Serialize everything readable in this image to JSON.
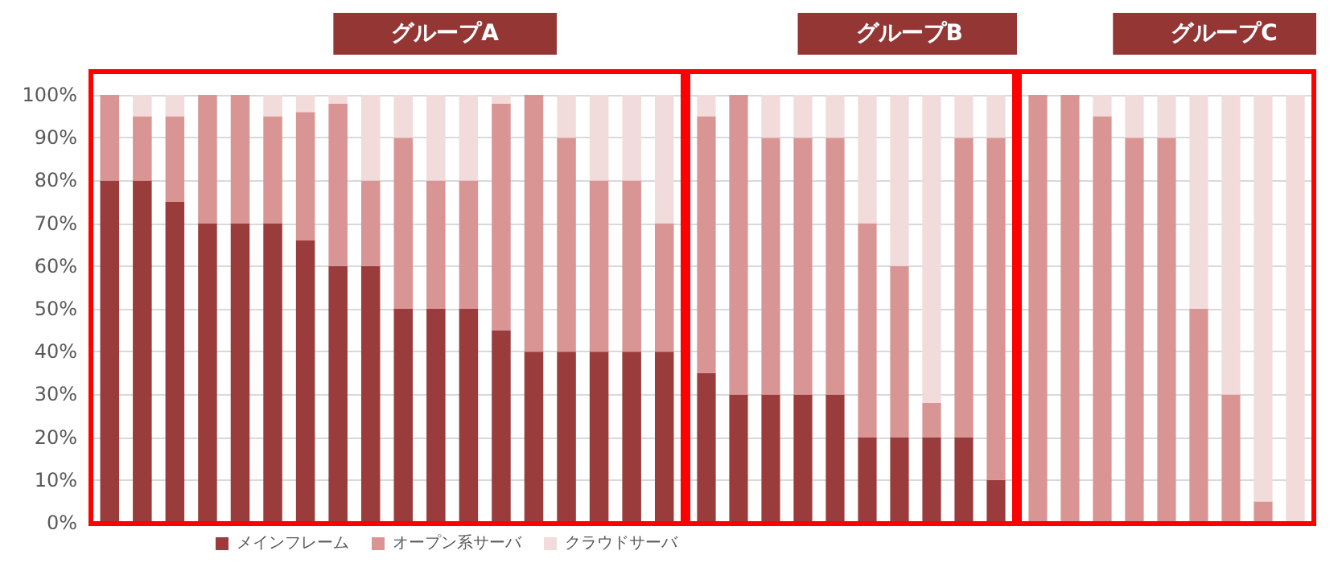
{
  "chart_data": [
    {
      "type": "bar",
      "stacked": true,
      "title": "グループA",
      "categories": [
        null,
        null,
        null,
        null,
        null,
        null,
        null,
        null,
        null,
        null,
        null,
        null,
        null,
        null,
        null,
        null,
        null,
        null
      ],
      "series": [
        {
          "name": "メインフレーム",
          "color": "#9b3c3c",
          "values": [
            80,
            80,
            75,
            70,
            70,
            70,
            66,
            60,
            60,
            50,
            50,
            50,
            45,
            40,
            40,
            40,
            40,
            40
          ]
        },
        {
          "name": "オープン系サーバ",
          "color": "#d99594",
          "values": [
            20,
            15,
            20,
            30,
            30,
            25,
            30,
            38,
            20,
            40,
            30,
            30,
            53,
            60,
            50,
            40,
            40,
            30
          ]
        },
        {
          "name": "クラウドサーバ",
          "color": "#f2dbdb",
          "values": [
            0,
            5,
            5,
            0,
            0,
            5,
            4,
            2,
            20,
            10,
            20,
            20,
            2,
            0,
            10,
            20,
            20,
            30
          ]
        }
      ],
      "ylim": [
        0,
        100
      ],
      "yticks": [
        {
          "value": 0,
          "label": "0%"
        },
        {
          "value": 10,
          "label": "10%"
        },
        {
          "value": 20,
          "label": "20%"
        },
        {
          "value": 30,
          "label": "30%"
        },
        {
          "value": 40,
          "label": "40%"
        },
        {
          "value": 50,
          "label": "50%"
        },
        {
          "value": 60,
          "label": "60%"
        },
        {
          "value": 70,
          "label": "70%"
        },
        {
          "value": 80,
          "label": "80%"
        },
        {
          "value": 90,
          "label": "90%"
        },
        {
          "value": 100,
          "label": "100%"
        }
      ],
      "grid": "y",
      "legend": "bottom",
      "tick_labels": "y"
    },
    {
      "type": "bar",
      "stacked": true,
      "title": "グループB",
      "categories": [
        null,
        null,
        null,
        null,
        null,
        null,
        null,
        null,
        null,
        null
      ],
      "series": [
        {
          "color": "#9b3c3c",
          "values": [
            35,
            30,
            30,
            30,
            30,
            20,
            20,
            20,
            20,
            10
          ]
        },
        {
          "color": "#d99594",
          "values": [
            60,
            70,
            60,
            60,
            60,
            50,
            40,
            8,
            70,
            80
          ]
        },
        {
          "color": "#f2dbdb",
          "values": [
            5,
            0,
            10,
            10,
            10,
            30,
            40,
            72,
            10,
            10
          ]
        }
      ],
      "ylim": [
        0,
        100
      ],
      "yticks": [
        0,
        10,
        20,
        30,
        40,
        50,
        60,
        70,
        80,
        90,
        100
      ],
      "grid": "y",
      "tick_labels": false
    },
    {
      "type": "bar",
      "stacked": true,
      "title": "グループC",
      "categories": [
        null,
        null,
        null,
        null,
        null,
        null,
        null,
        null,
        null
      ],
      "series": [
        {
          "color": "#d99594",
          "values": [
            100,
            100,
            95,
            90,
            90,
            50,
            30,
            5,
            null
          ]
        },
        {
          "color": "#f2dbdb",
          "values": [
            null,
            null,
            5,
            10,
            10,
            50,
            70,
            95,
            100
          ]
        }
      ],
      "ylim": [
        0,
        100
      ],
      "yticks": [
        0,
        10,
        20,
        30,
        40,
        50,
        60,
        70,
        80,
        90,
        100
      ],
      "grid": "y",
      "tick_labels": false
    }
  ]
}
